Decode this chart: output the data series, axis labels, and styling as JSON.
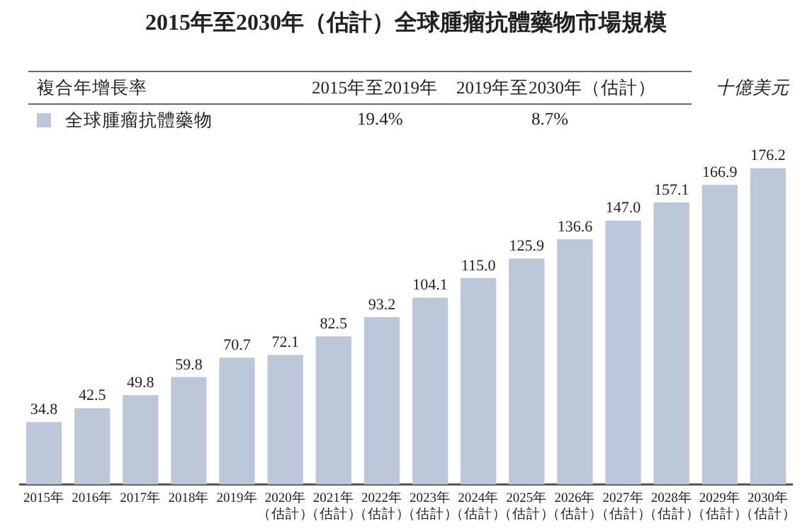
{
  "chart_data": {
    "type": "bar",
    "title": "2015年至2030年（估計）全球腫瘤抗體藥物市場規模",
    "ylabel": "十億美元",
    "annotations": [
      "複合年增長率",
      "2015年至2019年",
      "2019年至2030年（估計）",
      "19.4%",
      "8.7%"
    ],
    "categories": [
      "2015年",
      "2016年",
      "2017年",
      "2018年",
      "2019年",
      "2020年（估計）",
      "2021年（估計）",
      "2022年（估計）",
      "2023年（估計）",
      "2024年（估計）",
      "2025年（估計）",
      "2026年（估計）",
      "2027年（估計）",
      "2028年（估計）",
      "2029年（估計）",
      "2030年（估計）"
    ],
    "series": [
      {
        "name": "全球腫瘤抗體藥物",
        "color": "#bcc8d9",
        "values": [
          34.8,
          42.5,
          49.8,
          59.8,
          70.7,
          72.1,
          82.5,
          93.2,
          104.1,
          115,
          125.9,
          136.6,
          147,
          157.1,
          166.9,
          176.2
        ],
        "value_labels": [
          "34.8",
          "42.5",
          "49.8",
          "59.8",
          "70.7",
          "72.1",
          "82.5",
          "93.2",
          "104.1",
          "115.0",
          "125.9",
          "136.6",
          "147.0",
          "157.1",
          "166.9",
          "176.2"
        ]
      }
    ],
    "legend": "top left",
    "grid": false,
    "tick_labels": "x"
  }
}
